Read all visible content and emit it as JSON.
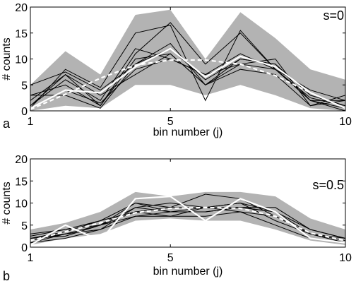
{
  "chart_data": [
    {
      "type": "line",
      "panel_label": "a",
      "annotation": "s=0",
      "xlabel": "bin number (j)",
      "ylabel": "# counts",
      "xlim": [
        1,
        10
      ],
      "ylim": [
        0,
        20
      ],
      "x_ticks": [
        1,
        5,
        10
      ],
      "y_ticks": [
        0,
        5,
        10,
        15,
        20
      ],
      "x": [
        1,
        2,
        3,
        4,
        5,
        6,
        7,
        8,
        9,
        10
      ],
      "envelope_low": [
        0,
        1,
        0.5,
        5,
        5,
        3,
        5,
        3,
        0.5,
        0
      ],
      "envelope_high": [
        5,
        11.5,
        7,
        18.5,
        19.5,
        10,
        19,
        14,
        8,
        6
      ],
      "trials": [
        [
          0.5,
          8,
          4.5,
          15,
          16.5,
          2,
          15.5,
          8,
          2,
          0.5
        ],
        [
          2,
          7,
          1,
          11,
          17,
          9,
          15,
          8,
          4,
          2
        ],
        [
          5,
          7.5,
          4,
          9,
          12,
          6,
          10,
          9,
          3,
          1
        ],
        [
          3,
          5,
          1,
          10,
          11,
          5,
          9,
          10,
          1,
          2
        ],
        [
          1,
          6,
          2,
          12,
          10,
          7,
          9,
          8,
          2,
          0
        ],
        [
          3,
          3,
          0.5,
          9,
          13,
          5,
          8,
          7,
          1,
          3
        ],
        [
          0.5,
          4,
          1.5,
          8,
          10,
          7,
          11,
          8,
          2.5,
          1
        ],
        [
          1,
          7,
          3,
          7,
          11,
          5,
          10,
          9,
          2,
          2
        ]
      ],
      "mean": [
        0.5,
        4,
        3.5,
        8.5,
        12,
        6.5,
        10.5,
        8.5,
        3.5,
        0.5
      ],
      "fit": [
        0.3,
        3.2,
        6.3,
        8.8,
        9.8,
        9.8,
        9,
        6.8,
        3.5,
        0.5
      ],
      "colors": {
        "envelope": "#b3b3b3",
        "trials": "#000000",
        "mean": "#ffffff",
        "fit": "#ffffff"
      }
    },
    {
      "type": "line",
      "panel_label": "b",
      "annotation": "s=0.5",
      "xlabel": "bin number (j)",
      "ylabel": "# counts",
      "xlim": [
        1,
        10
      ],
      "ylim": [
        0,
        20
      ],
      "x_ticks": [
        1,
        5,
        10
      ],
      "y_ticks": [
        0,
        5,
        10,
        15,
        20
      ],
      "x": [
        1,
        2,
        3,
        4,
        5,
        6,
        7,
        8,
        9,
        10
      ],
      "envelope_low": [
        0.5,
        2,
        3,
        6,
        6.5,
        6,
        6,
        4,
        1.5,
        0.5
      ],
      "envelope_high": [
        4,
        5.5,
        8,
        12.5,
        11.5,
        12.5,
        12.5,
        11.5,
        6.5,
        4
      ],
      "trials": [
        [
          2,
          3,
          5,
          10,
          9,
          12,
          11,
          7,
          3,
          1
        ],
        [
          1,
          3,
          4,
          9,
          8,
          8,
          9,
          9,
          4,
          2
        ],
        [
          2.5,
          4,
          6,
          8,
          9,
          9,
          10,
          8,
          2,
          1
        ],
        [
          2,
          2.5,
          5,
          9,
          10,
          9,
          8,
          7,
          3,
          2
        ],
        [
          1.5,
          3,
          5,
          7,
          8,
          9,
          9,
          8,
          3,
          1
        ],
        [
          3,
          4,
          5,
          8,
          7,
          9,
          10,
          6,
          3,
          1.5
        ],
        [
          2,
          3.5,
          6,
          10,
          8,
          8,
          9,
          8,
          4,
          2
        ],
        [
          1,
          2,
          4,
          7,
          7,
          7,
          8,
          5,
          2,
          1
        ]
      ],
      "mean": [
        0.5,
        5,
        1.5,
        11,
        11.5,
        6,
        11,
        8,
        2,
        1
      ],
      "fit": [
        1.5,
        3.5,
        5.5,
        7.8,
        8.8,
        9,
        8.8,
        7,
        3.2,
        1.5
      ],
      "colors": {
        "envelope": "#b3b3b3",
        "trials": "#000000",
        "mean": "#ffffff",
        "fit": "#ffffff"
      }
    }
  ]
}
